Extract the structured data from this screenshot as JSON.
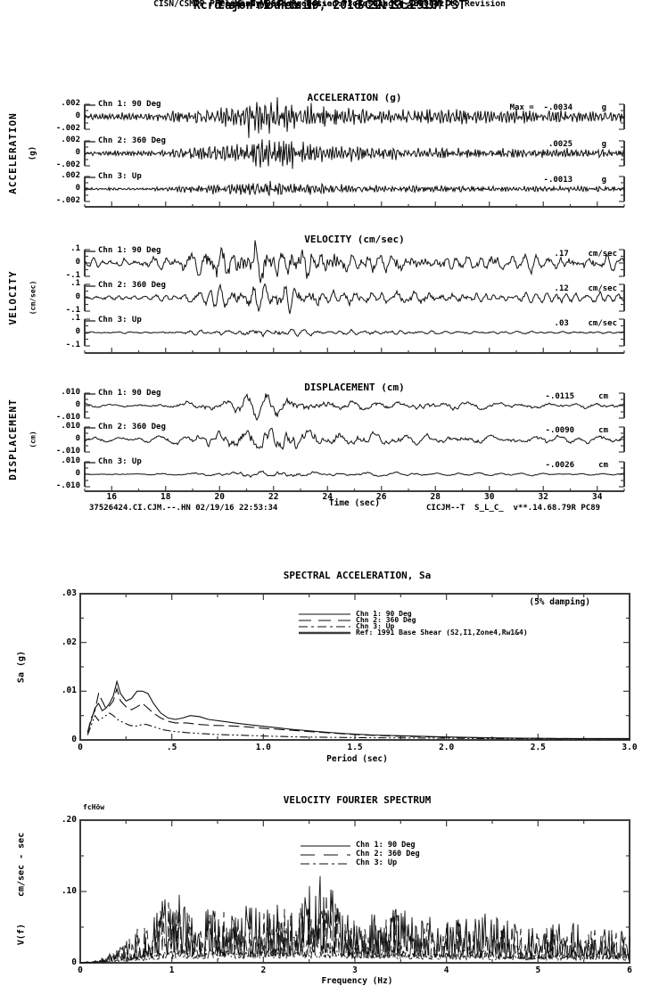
{
  "header": {
    "title_line": "Cajon Mountain      SCSN Sta CJM",
    "record_line": "Rcrd of Fri Feb 19, 2016 22:13:25.0 PST",
    "band_line": "Frequency Band Processed: 3.3 secs to 23.0 Hz",
    "disclaimer_line": "CISN/CSMIP Preliminary Strong Motion Processing - Subject to Revision"
  },
  "footer": {
    "record_id": "37526424.CI.CJM.--.HN 02/19/16 22:53:34",
    "station_code": "CICJM--T  S_L_C_  v**.14.68.79R PC89"
  },
  "time_axis": {
    "label": "Time (sec)",
    "range": [
      15,
      35
    ],
    "tick_values": [
      16,
      18,
      20,
      22,
      24,
      26,
      28,
      30,
      32,
      34
    ],
    "tick_labels": [
      "16",
      "18",
      "20",
      "22",
      "24",
      "26",
      "28",
      "30",
      "32",
      "34"
    ]
  },
  "timeseries_envelope": [
    [
      15,
      0.18
    ],
    [
      17,
      0.2
    ],
    [
      18,
      0.25
    ],
    [
      18.5,
      0.35
    ],
    [
      19,
      0.5
    ],
    [
      19.5,
      0.55
    ],
    [
      20,
      0.6
    ],
    [
      20.5,
      0.7
    ],
    [
      21,
      0.85
    ],
    [
      21.5,
      1.0
    ],
    [
      22,
      0.95
    ],
    [
      22.5,
      1.0
    ],
    [
      23,
      0.85
    ],
    [
      23.5,
      0.7
    ],
    [
      24,
      0.6
    ],
    [
      25,
      0.5
    ],
    [
      26,
      0.45
    ],
    [
      27,
      0.4
    ],
    [
      28,
      0.42
    ],
    [
      29,
      0.38
    ],
    [
      30,
      0.35
    ],
    [
      31,
      0.33
    ],
    [
      32,
      0.35
    ],
    [
      33,
      0.3
    ],
    [
      34,
      0.32
    ],
    [
      35,
      0.3
    ]
  ],
  "chart_data": [
    {
      "type": "line",
      "id": "acceleration",
      "title": "ACCELERATION (g)",
      "side_label": "ACCELERATION",
      "side_unit": "(g)",
      "y_tick_labels": [
        ".002",
        "0",
        "-.002"
      ],
      "y_limit": 0.002,
      "x_range": [
        15,
        35
      ],
      "channels": [
        {
          "label": "Chn 1: 90 Deg",
          "max_display": "Max =  -.0034      g",
          "max_value": -0.0034,
          "unit": "g",
          "peak": 0.0034,
          "seed": 101
        },
        {
          "label": "Chn 2: 360 Deg",
          "max_display": ".0025      g",
          "max_value": 0.0025,
          "unit": "g",
          "peak": 0.0025,
          "seed": 102
        },
        {
          "label": "Chn 3: Up",
          "max_display": "-.0013      g",
          "max_value": -0.0013,
          "unit": "g",
          "peak": 0.0013,
          "seed": 103
        }
      ]
    },
    {
      "type": "line",
      "id": "velocity",
      "title": "VELOCITY (cm/sec)",
      "side_label": "VELOCITY",
      "side_unit": "(cm/sec)",
      "y_tick_labels": [
        ".1",
        "0",
        "-.1"
      ],
      "y_limit": 0.1,
      "x_range": [
        15,
        35
      ],
      "channels": [
        {
          "label": "Chn 1: 90 Deg",
          "max_display": ".17    cm/sec",
          "max_value": 0.17,
          "unit": "cm/sec",
          "peak": 0.17,
          "seed": 201
        },
        {
          "label": "Chn 2: 360 Deg",
          "max_display": ".12    cm/sec",
          "max_value": 0.12,
          "unit": "cm/sec",
          "peak": 0.12,
          "seed": 202
        },
        {
          "label": "Chn 3: Up",
          "max_display": ".03    cm/sec",
          "max_value": 0.03,
          "unit": "cm/sec",
          "peak": 0.03,
          "seed": 203
        }
      ]
    },
    {
      "type": "line",
      "id": "displacement",
      "title": "DISPLACEMENT (cm)",
      "side_label": "DISPLACEMENT",
      "side_unit": "(cm)",
      "y_tick_labels": [
        ".010",
        "0",
        "-.010"
      ],
      "y_limit": 0.01,
      "x_range": [
        15,
        35
      ],
      "channels": [
        {
          "label": "Chn 1: 90 Deg",
          "max_display": "-.0115     cm",
          "max_value": -0.0115,
          "unit": "cm",
          "peak": 0.0115,
          "seed": 301
        },
        {
          "label": "Chn 2: 360 Deg",
          "max_display": "-.0090     cm",
          "max_value": -0.009,
          "unit": "cm",
          "peak": 0.009,
          "seed": 302
        },
        {
          "label": "Chn 3: Up",
          "max_display": "-.0026     cm",
          "max_value": -0.0026,
          "unit": "cm",
          "peak": 0.0026,
          "seed": 303
        }
      ]
    },
    {
      "type": "line",
      "id": "spectral_acceleration",
      "title": "SPECTRAL ACCELERATION, Sa",
      "note": "(5% damping)",
      "xlabel": "Period (sec)",
      "ylabel": "Sa (g)",
      "xlim": [
        0,
        3
      ],
      "ylim": [
        0,
        0.03
      ],
      "x_tick_values": [
        0,
        0.5,
        1.0,
        1.5,
        2.0,
        2.5,
        3.0
      ],
      "x_tick_labels": [
        "0",
        ".5",
        "1.0",
        "1.5",
        "2.0",
        "2.5",
        "3.0"
      ],
      "y_tick_values": [
        0,
        0.01,
        0.02,
        0.03
      ],
      "y_tick_labels": [
        "0",
        ".01",
        ".02",
        ".03"
      ],
      "legend": [
        {
          "name": "Chn 1: 90 Deg",
          "style": "solid"
        },
        {
          "name": "Chn 2: 360 Deg",
          "style": "longdash"
        },
        {
          "name": "Chn 3: Up",
          "style": "dashdot"
        },
        {
          "name": "Ref: 1991 Base Shear (S2,I1,Zone4,Rw1&4)",
          "style": "thicksolid"
        }
      ],
      "series": [
        {
          "name": "Chn 3: Up",
          "style": "dashdot",
          "points": [
            [
              0.04,
              0.001
            ],
            [
              0.06,
              0.003
            ],
            [
              0.08,
              0.005
            ],
            [
              0.1,
              0.004
            ],
            [
              0.12,
              0.0045
            ],
            [
              0.14,
              0.005
            ],
            [
              0.16,
              0.0055
            ],
            [
              0.18,
              0.005
            ],
            [
              0.21,
              0.004
            ],
            [
              0.24,
              0.0035
            ],
            [
              0.27,
              0.003
            ],
            [
              0.3,
              0.0028
            ],
            [
              0.33,
              0.0031
            ],
            [
              0.36,
              0.0032
            ],
            [
              0.4,
              0.0027
            ],
            [
              0.45,
              0.0021
            ],
            [
              0.5,
              0.0018
            ],
            [
              0.58,
              0.0015
            ],
            [
              0.66,
              0.0013
            ],
            [
              0.75,
              0.0011
            ],
            [
              0.85,
              0.001
            ],
            [
              1.0,
              0.0008
            ],
            [
              1.2,
              0.0006
            ],
            [
              1.45,
              0.0005
            ],
            [
              1.8,
              0.0004
            ],
            [
              2.2,
              0.0003
            ],
            [
              2.6,
              0.0002
            ],
            [
              3.0,
              0.0002
            ]
          ]
        },
        {
          "name": "Chn 2: 360 Deg",
          "style": "longdash",
          "points": [
            [
              0.04,
              0.0015
            ],
            [
              0.06,
              0.0045
            ],
            [
              0.08,
              0.006
            ],
            [
              0.1,
              0.0095
            ],
            [
              0.12,
              0.008
            ],
            [
              0.14,
              0.0065
            ],
            [
              0.16,
              0.007
            ],
            [
              0.18,
              0.008
            ],
            [
              0.2,
              0.0105
            ],
            [
              0.22,
              0.008
            ],
            [
              0.25,
              0.0068
            ],
            [
              0.28,
              0.0062
            ],
            [
              0.31,
              0.0068
            ],
            [
              0.34,
              0.0075
            ],
            [
              0.37,
              0.0065
            ],
            [
              0.4,
              0.0055
            ],
            [
              0.44,
              0.0045
            ],
            [
              0.48,
              0.0038
            ],
            [
              0.52,
              0.0035
            ],
            [
              0.58,
              0.0035
            ],
            [
              0.64,
              0.0032
            ],
            [
              0.72,
              0.003
            ],
            [
              0.8,
              0.0029
            ],
            [
              0.9,
              0.0027
            ],
            [
              1.0,
              0.0024
            ],
            [
              1.15,
              0.002
            ],
            [
              1.3,
              0.0016
            ],
            [
              1.5,
              0.0011
            ],
            [
              1.7,
              0.0008
            ],
            [
              1.95,
              0.0006
            ],
            [
              2.2,
              0.0004
            ],
            [
              2.6,
              0.0003
            ],
            [
              3.0,
              0.0002
            ]
          ]
        },
        {
          "name": "Chn 1: 90 Deg",
          "style": "solid",
          "points": [
            [
              0.04,
              0.0015
            ],
            [
              0.06,
              0.004
            ],
            [
              0.08,
              0.0065
            ],
            [
              0.1,
              0.0075
            ],
            [
              0.12,
              0.006
            ],
            [
              0.14,
              0.0065
            ],
            [
              0.16,
              0.0075
            ],
            [
              0.18,
              0.009
            ],
            [
              0.2,
              0.012
            ],
            [
              0.22,
              0.0095
            ],
            [
              0.25,
              0.008
            ],
            [
              0.28,
              0.0085
            ],
            [
              0.31,
              0.01
            ],
            [
              0.34,
              0.01
            ],
            [
              0.37,
              0.0095
            ],
            [
              0.4,
              0.0075
            ],
            [
              0.44,
              0.0055
            ],
            [
              0.48,
              0.0045
            ],
            [
              0.52,
              0.0042
            ],
            [
              0.56,
              0.0045
            ],
            [
              0.6,
              0.005
            ],
            [
              0.65,
              0.0048
            ],
            [
              0.7,
              0.0042
            ],
            [
              0.78,
              0.0038
            ],
            [
              0.86,
              0.0034
            ],
            [
              0.95,
              0.003
            ],
            [
              1.05,
              0.0026
            ],
            [
              1.15,
              0.0022
            ],
            [
              1.3,
              0.0017
            ],
            [
              1.45,
              0.0013
            ],
            [
              1.6,
              0.001
            ],
            [
              1.8,
              0.0008
            ],
            [
              2.0,
              0.0006
            ],
            [
              2.3,
              0.0004
            ],
            [
              2.6,
              0.0003
            ],
            [
              3.0,
              0.0003
            ]
          ]
        }
      ]
    },
    {
      "type": "line",
      "id": "velocity_fourier_spectrum",
      "title": "VELOCITY FOURIER SPECTRUM",
      "corner_label": "fcHöw",
      "xlabel": "Frequency (Hz)",
      "ylabel": "V(f)     cm/sec - sec",
      "xlim": [
        0,
        6
      ],
      "ylim": [
        0,
        0.2
      ],
      "x_tick_values": [
        0,
        1,
        2,
        3,
        4,
        5,
        6
      ],
      "x_tick_labels": [
        "0",
        "1",
        "2",
        "3",
        "4",
        "5",
        "6"
      ],
      "y_tick_values": [
        0,
        0.1,
        0.2
      ],
      "y_tick_labels": [
        "0",
        ".10",
        ".20"
      ],
      "legend": [
        {
          "name": "Chn 1: 90 Deg",
          "style": "solid"
        },
        {
          "name": "Chn 2: 360 Deg",
          "style": "longdash"
        },
        {
          "name": "Chn 3: Up",
          "style": "dashdot"
        }
      ],
      "series": [
        {
          "name": "Chn 3: Up",
          "style": "dashdot",
          "seed": 403,
          "jitter_floor": 0.3,
          "jitter_pow": 1.5,
          "envelope": [
            [
              0,
              0
            ],
            [
              0.3,
              0.003
            ],
            [
              0.6,
              0.008
            ],
            [
              0.9,
              0.015
            ],
            [
              1.2,
              0.02
            ],
            [
              1.5,
              0.018
            ],
            [
              2.0,
              0.02
            ],
            [
              2.5,
              0.022
            ],
            [
              3.0,
              0.02
            ],
            [
              3.5,
              0.018
            ],
            [
              4.0,
              0.015
            ],
            [
              4.5,
              0.014
            ],
            [
              5.0,
              0.012
            ],
            [
              5.5,
              0.012
            ],
            [
              6.0,
              0.01
            ]
          ]
        },
        {
          "name": "Chn 2: 360 Deg",
          "style": "longdash",
          "seed": 402,
          "jitter_floor": 0.12,
          "jitter_pow": 2.0,
          "envelope": [
            [
              0,
              0
            ],
            [
              0.2,
              0.004
            ],
            [
              0.4,
              0.02
            ],
            [
              0.6,
              0.045
            ],
            [
              0.8,
              0.065
            ],
            [
              1.0,
              0.08
            ],
            [
              1.15,
              0.07
            ],
            [
              1.3,
              0.06
            ],
            [
              1.5,
              0.07
            ],
            [
              1.7,
              0.065
            ],
            [
              1.9,
              0.06
            ],
            [
              2.1,
              0.07
            ],
            [
              2.3,
              0.065
            ],
            [
              2.5,
              0.075
            ],
            [
              2.7,
              0.09
            ],
            [
              2.9,
              0.065
            ],
            [
              3.1,
              0.055
            ],
            [
              3.4,
              0.06
            ],
            [
              3.7,
              0.055
            ],
            [
              4.0,
              0.05
            ],
            [
              4.3,
              0.055
            ],
            [
              4.6,
              0.05
            ],
            [
              4.9,
              0.04
            ],
            [
              5.2,
              0.045
            ],
            [
              5.5,
              0.04
            ],
            [
              5.8,
              0.045
            ],
            [
              6.0,
              0.035
            ]
          ]
        },
        {
          "name": "Chn 1: 90 Deg",
          "style": "solid",
          "seed": 401,
          "jitter_floor": 0.12,
          "jitter_pow": 2.0,
          "envelope": [
            [
              0,
              0
            ],
            [
              0.15,
              0.002
            ],
            [
              0.3,
              0.01
            ],
            [
              0.5,
              0.025
            ],
            [
              0.7,
              0.05
            ],
            [
              0.85,
              0.075
            ],
            [
              0.95,
              0.1
            ],
            [
              1.05,
              0.09
            ],
            [
              1.2,
              0.075
            ],
            [
              1.35,
              0.065
            ],
            [
              1.5,
              0.075
            ],
            [
              1.65,
              0.07
            ],
            [
              1.8,
              0.08
            ],
            [
              2.0,
              0.07
            ],
            [
              2.2,
              0.075
            ],
            [
              2.4,
              0.085
            ],
            [
              2.6,
              0.11
            ],
            [
              2.75,
              0.1
            ],
            [
              2.9,
              0.07
            ],
            [
              3.1,
              0.06
            ],
            [
              3.3,
              0.065
            ],
            [
              3.5,
              0.07
            ],
            [
              3.7,
              0.06
            ],
            [
              3.9,
              0.065
            ],
            [
              4.1,
              0.055
            ],
            [
              4.3,
              0.06
            ],
            [
              4.5,
              0.065
            ],
            [
              4.7,
              0.05
            ],
            [
              4.9,
              0.045
            ],
            [
              5.1,
              0.05
            ],
            [
              5.3,
              0.055
            ],
            [
              5.5,
              0.045
            ],
            [
              5.7,
              0.05
            ],
            [
              5.9,
              0.04
            ],
            [
              6.0,
              0.04
            ]
          ]
        }
      ]
    }
  ]
}
